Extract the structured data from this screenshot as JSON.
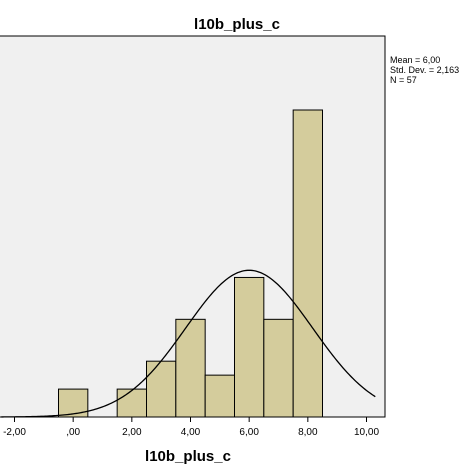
{
  "chart_data": {
    "type": "bar",
    "title": "l10b_plus_c",
    "xlabel": "l10b_plus_c",
    "ylabel": "",
    "xlim": [
      -2.6,
      10.3
    ],
    "ylim": [
      0,
      21
    ],
    "x_ticks": [
      -2,
      0,
      2,
      4,
      6,
      8,
      10
    ],
    "x_tick_labels": [
      "-2,00",
      ",00",
      "2,00",
      "4,00",
      "6,00",
      "8,00",
      "10,00"
    ],
    "bins": [
      {
        "x0": -0.5,
        "x1": 0.5,
        "count": 2
      },
      {
        "x0": 0.5,
        "x1": 1.5,
        "count": 0
      },
      {
        "x0": 1.5,
        "x1": 2.5,
        "count": 2
      },
      {
        "x0": 2.5,
        "x1": 3.5,
        "count": 4
      },
      {
        "x0": 3.5,
        "x1": 4.5,
        "count": 7
      },
      {
        "x0": 4.5,
        "x1": 5.5,
        "count": 3
      },
      {
        "x0": 5.5,
        "x1": 6.5,
        "count": 10
      },
      {
        "x0": 6.5,
        "x1": 7.5,
        "count": 7
      },
      {
        "x0": 7.5,
        "x1": 8.5,
        "count": 22
      }
    ],
    "normal_curve": {
      "mean": 6.0,
      "std": 2.163,
      "n": 57,
      "bin_width": 1
    },
    "stats_lines": [
      "Mean = 6,00",
      "Std. Dev. = 2,163",
      "N = 57"
    ],
    "colors": {
      "bar_fill": "#d4cc9c",
      "bar_stroke": "#000000",
      "plot_bg": "#f0f0f0",
      "curve": "#000000"
    },
    "grid": false,
    "legend": "right"
  }
}
